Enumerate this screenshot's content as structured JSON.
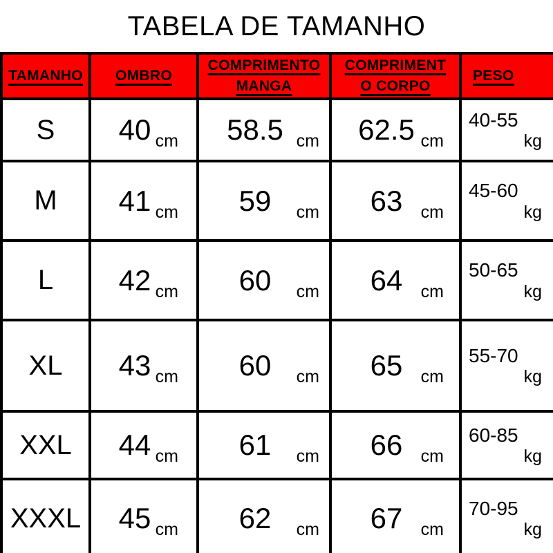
{
  "title": "TABELA DE TAMANHO",
  "colors": {
    "header_bg": "#fa0000",
    "border": "#000000",
    "text": "#000000",
    "background": "#ffffff"
  },
  "table": {
    "headers": [
      {
        "lines": [
          "TAMANHO"
        ]
      },
      {
        "lines": [
          "OMBRO"
        ]
      },
      {
        "lines": [
          "COMPRIMENTO",
          "MANGA"
        ]
      },
      {
        "lines": [
          "COMPRIMENT",
          "O CORPO"
        ]
      },
      {
        "lines": [
          "PESO"
        ]
      }
    ],
    "units": {
      "length": "cm",
      "weight": "kg"
    },
    "rows": [
      {
        "size": "S",
        "ombro": "40",
        "manga": "58.5",
        "corpo": "62.5",
        "peso": "40-55"
      },
      {
        "size": "M",
        "ombro": "41",
        "manga": "59",
        "corpo": "63",
        "peso": "45-60"
      },
      {
        "size": "L",
        "ombro": "42",
        "manga": "60",
        "corpo": "64",
        "peso": "50-65"
      },
      {
        "size": "XL",
        "ombro": "43",
        "manga": "60",
        "corpo": "65",
        "peso": "55-70"
      },
      {
        "size": "XXL",
        "ombro": "44",
        "manga": "61",
        "corpo": "66",
        "peso": "60-85"
      },
      {
        "size": "XXXL",
        "ombro": "45",
        "manga": "62",
        "corpo": "67",
        "peso": "70-95"
      }
    ]
  }
}
